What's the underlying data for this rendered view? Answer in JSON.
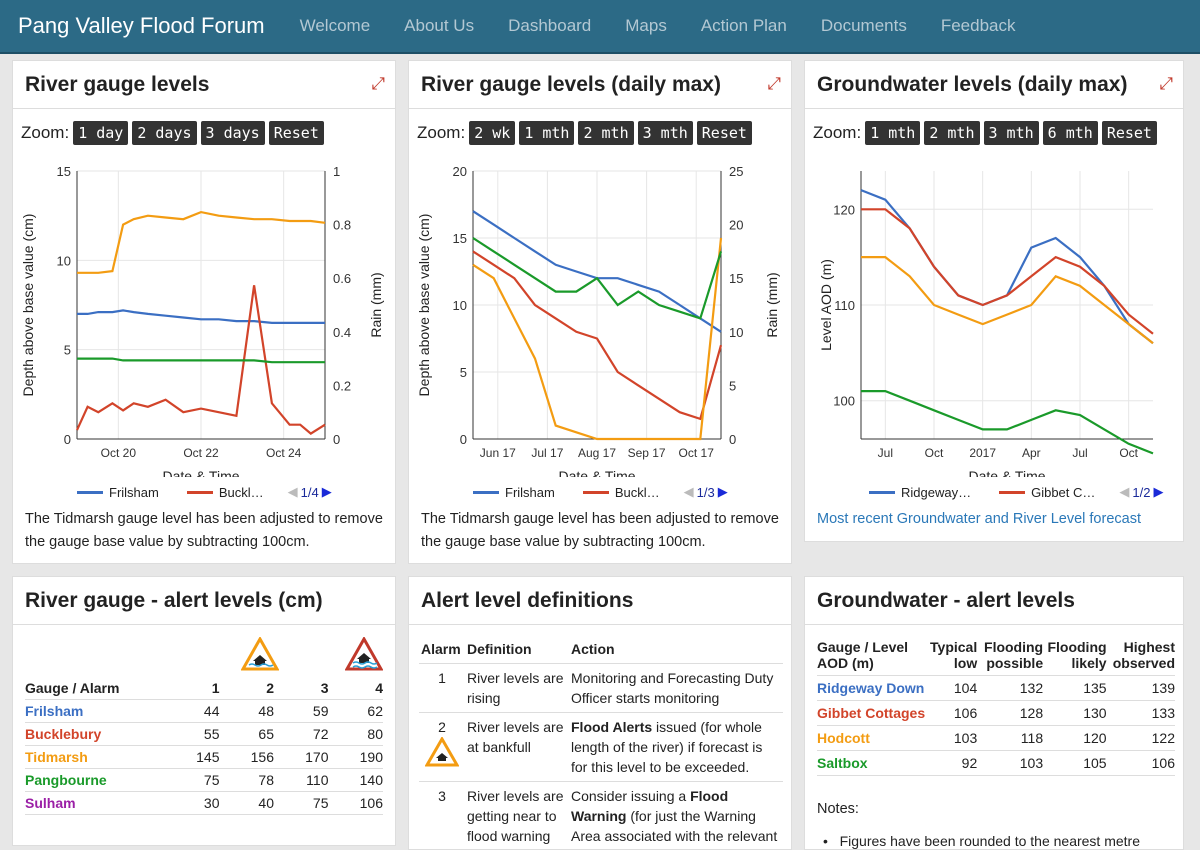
{
  "nav": {
    "brand": "Pang Valley Flood Forum",
    "items": [
      "Welcome",
      "About Us",
      "Dashboard",
      "Maps",
      "Action Plan",
      "Documents",
      "Feedback"
    ]
  },
  "colors": {
    "frilsham": "#3b6fc3",
    "bucklebury": "#d2442a",
    "tidmarsh": "#f39c12",
    "pangbourne": "#1a9a2a",
    "sulham": "#9b1fa6",
    "rain": "#a8d8e0",
    "link": "#2a78b8"
  },
  "icons": {
    "expand": "expand-arrows-icon",
    "prev": "triangle-left-icon",
    "next": "triangle-right-icon",
    "amber": "flood-alert-icon",
    "red": "flood-warning-icon"
  },
  "p1": {
    "title": "River gauge levels",
    "zoom_label": "Zoom:",
    "zoom": [
      "1 day",
      "2 days",
      "3 days",
      "Reset"
    ],
    "legend": [
      "Frilsham",
      "Buckl…"
    ],
    "page": "1/4",
    "note": "The Tidmarsh gauge level has been adjusted to remove the gauge base value by subtracting 100cm."
  },
  "p2": {
    "title": "River gauge levels (daily max)",
    "zoom_label": "Zoom:",
    "zoom": [
      "2 wk",
      "1 mth",
      "2 mth",
      "3 mth",
      "Reset"
    ],
    "legend": [
      "Frilsham",
      "Buckl…"
    ],
    "page": "1/3",
    "note": "The Tidmarsh gauge level has been adjusted to remove the gauge base value by subtracting 100cm."
  },
  "p3": {
    "title": "Groundwater levels (daily max)",
    "zoom_label": "Zoom:",
    "zoom": [
      "1 mth",
      "2 mth",
      "3 mth",
      "6 mth",
      "Reset"
    ],
    "legend": [
      "Ridgeway…",
      "Gibbet C…"
    ],
    "page": "1/2",
    "link": "Most recent Groundwater and River Level forecast"
  },
  "p4": {
    "title": "River gauge - alert levels (cm)",
    "head": [
      "Gauge / Alarm",
      "1",
      "2",
      "3",
      "4"
    ],
    "rows": [
      [
        "Frilsham",
        "44",
        "48",
        "59",
        "62"
      ],
      [
        "Bucklebury",
        "55",
        "65",
        "72",
        "80"
      ],
      [
        "Tidmarsh",
        "145",
        "156",
        "170",
        "190"
      ],
      [
        "Pangbourne",
        "75",
        "78",
        "110",
        "140"
      ],
      [
        "Sulham",
        "30",
        "40",
        "75",
        "106"
      ]
    ]
  },
  "p5": {
    "title": "Alert level definitions",
    "head": [
      "Alarm",
      "Definition",
      "Action"
    ],
    "rows": [
      {
        "n": "1",
        "def": "River levels are rising",
        "act_pre": "",
        "act_bold": "",
        "act": "Monitoring and Forecasting Duty Officer starts monitoring"
      },
      {
        "n": "2",
        "def": "River levels are at bankfull",
        "act_pre": "",
        "act_bold": "Flood Alerts",
        "act": " issued (for whole length of the river) if forecast is for this level to be exceeded."
      },
      {
        "n": "3",
        "def": "River levels are getting near to flood warning",
        "act_pre": "Consider issuing a ",
        "act_bold": "Flood Warning",
        "act": " (for just the Warning Area associated with the relevant gauge)"
      }
    ]
  },
  "p6": {
    "title": "Groundwater - alert levels",
    "head": [
      "Gauge / Level AOD (m)",
      "Typical low",
      "Flooding possible",
      "Flooding likely",
      "Highest observed"
    ],
    "rows": [
      [
        "Ridgeway Down",
        "104",
        "132",
        "135",
        "139"
      ],
      [
        "Gibbet Cottages",
        "106",
        "128",
        "130",
        "133"
      ],
      [
        "Hodcott",
        "103",
        "118",
        "120",
        "122"
      ],
      [
        "Saltbox",
        "92",
        "103",
        "105",
        "106"
      ]
    ],
    "notes_label": "Notes:",
    "notes": [
      "Figures have been rounded to the nearest metre"
    ]
  },
  "chart_data": [
    {
      "type": "line",
      "title": "River gauge levels",
      "xlabel": "Date & Time",
      "ylabel": "Depth above base value (cm)",
      "y2label": "Rain (mm)",
      "ylim": [
        0,
        15
      ],
      "y2lim": [
        0,
        1
      ],
      "xticks": [
        "Oct 20",
        "Oct 22",
        "Oct 24"
      ],
      "yticks": [
        "0",
        "5",
        "10",
        "15"
      ],
      "y2ticks": [
        "0",
        "0.2",
        "0.4",
        "0.6",
        "0.8",
        "1"
      ],
      "x": [
        0,
        0.3,
        0.6,
        1,
        1.3,
        1.6,
        2,
        2.5,
        3,
        3.5,
        4,
        4.5,
        5,
        5.5,
        6,
        6.3,
        6.6,
        7
      ],
      "series": [
        {
          "name": "Frilsham",
          "values": [
            7,
            7,
            7.1,
            7.1,
            7.2,
            7.1,
            7.0,
            6.9,
            6.8,
            6.7,
            6.7,
            6.6,
            6.6,
            6.5,
            6.5,
            6.5,
            6.5,
            6.5
          ]
        },
        {
          "name": "Bucklebury",
          "values": [
            0.5,
            1.8,
            1.5,
            2,
            1.6,
            2.0,
            1.8,
            2.2,
            1.5,
            1.7,
            1.5,
            1.3,
            8.6,
            2.0,
            0.8,
            0.8,
            0.3,
            0.8
          ]
        },
        {
          "name": "Tidmarsh",
          "values": [
            9.3,
            9.3,
            9.3,
            9.4,
            12.0,
            12.3,
            12.5,
            12.4,
            12.3,
            12.7,
            12.5,
            12.4,
            12.3,
            12.3,
            12.2,
            12.2,
            12.2,
            12.1
          ]
        },
        {
          "name": "Pangbourne",
          "values": [
            4.5,
            4.5,
            4.5,
            4.5,
            4.4,
            4.4,
            4.4,
            4.4,
            4.4,
            4.4,
            4.4,
            4.4,
            4.4,
            4.3,
            4.3,
            4.3,
            4.3,
            4.3
          ]
        }
      ]
    },
    {
      "type": "line",
      "title": "River gauge levels (daily max)",
      "xlabel": "Date & Time",
      "ylabel": "Depth above base value (cm)",
      "y2label": "Rain (mm)",
      "ylim": [
        0,
        20
      ],
      "y2lim": [
        0,
        25
      ],
      "xticks": [
        "Jun 17",
        "Jul 17",
        "Aug 17",
        "Sep 17",
        "Oct 17"
      ],
      "yticks": [
        "0",
        "5",
        "10",
        "15",
        "20"
      ],
      "y2ticks": [
        "0",
        "5",
        "10",
        "15",
        "20",
        "25"
      ],
      "x": [
        0,
        1,
        2,
        3,
        4,
        5,
        6,
        7,
        8,
        9,
        10,
        11,
        12
      ],
      "series": [
        {
          "name": "Frilsham",
          "values": [
            17,
            16,
            15,
            14,
            13,
            12.5,
            12,
            12,
            11.5,
            11,
            10,
            9,
            8
          ]
        },
        {
          "name": "Bucklebury",
          "values": [
            14,
            13,
            12,
            10,
            9,
            8,
            7.5,
            5,
            4,
            3,
            2,
            1.5,
            7
          ]
        },
        {
          "name": "Tidmarsh",
          "values": [
            13,
            12,
            9,
            6,
            1,
            0.5,
            0,
            0,
            0,
            0,
            0,
            0,
            15
          ]
        },
        {
          "name": "Pangbourne",
          "values": [
            15,
            14,
            13,
            12,
            11,
            11,
            12,
            10,
            11,
            10,
            9.5,
            9,
            14
          ]
        }
      ]
    },
    {
      "type": "line",
      "title": "Groundwater levels (daily max)",
      "xlabel": "Date & Time",
      "ylabel": "Level AOD (m)",
      "ylim": [
        96,
        124
      ],
      "xticks": [
        "Jul",
        "Oct",
        "2017",
        "Apr",
        "Jul",
        "Oct"
      ],
      "yticks": [
        "100",
        "110",
        "120"
      ],
      "x": [
        0,
        1,
        2,
        3,
        4,
        5,
        6,
        7,
        8,
        9,
        10,
        11,
        12
      ],
      "series": [
        {
          "name": "Ridgeway Down",
          "values": [
            122,
            121,
            118,
            114,
            111,
            110,
            111,
            116,
            117,
            115,
            112,
            108,
            106
          ]
        },
        {
          "name": "Gibbet Cottages",
          "values": [
            120,
            120,
            118,
            114,
            111,
            110,
            111,
            113,
            115,
            114,
            112,
            109,
            107
          ]
        },
        {
          "name": "Hodcott",
          "values": [
            115,
            115,
            113,
            110,
            109,
            108,
            109,
            110,
            113,
            112,
            110,
            108,
            106
          ]
        },
        {
          "name": "Saltbox",
          "values": [
            101,
            101,
            100,
            99,
            98,
            97,
            97,
            98,
            99,
            98.5,
            97,
            95.5,
            94.5
          ]
        }
      ]
    }
  ]
}
